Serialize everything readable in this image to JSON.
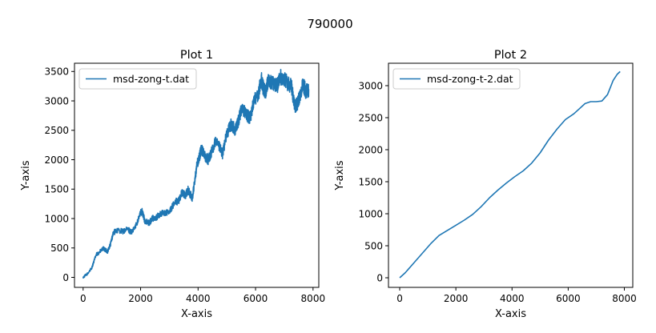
{
  "figure": {
    "suptitle": "790000"
  },
  "colors": {
    "line": "#1f77b4",
    "axes": "#000000",
    "legend_border": "#cccccc"
  },
  "chart_data": [
    {
      "type": "line",
      "title": "Plot 1",
      "xlabel": "X-axis",
      "ylabel": "Y-axis",
      "xlim": [
        -300,
        8200
      ],
      "ylim": [
        -170,
        3640
      ],
      "xticks": [
        0,
        2000,
        4000,
        6000,
        8000
      ],
      "yticks": [
        0,
        500,
        1000,
        1500,
        2000,
        2500,
        3000,
        3500
      ],
      "grid": false,
      "legend": "upper-left",
      "series": [
        {
          "name": "msd-zong-t.dat",
          "noisy": true,
          "x": [
            0,
            150,
            300,
            450,
            550,
            700,
            850,
            950,
            1050,
            1200,
            1400,
            1550,
            1700,
            1850,
            2000,
            2050,
            2150,
            2300,
            2400,
            2550,
            2700,
            2850,
            3000,
            3200,
            3300,
            3450,
            3550,
            3650,
            3800,
            3900,
            3950,
            4050,
            4100,
            4150,
            4250,
            4350,
            4450,
            4600,
            4750,
            4850,
            5000,
            5150,
            5300,
            5400,
            5500,
            5650,
            5800,
            5950,
            6100,
            6200,
            6250,
            6350,
            6450,
            6600,
            6750,
            6850,
            6950,
            7100,
            7250,
            7350,
            7450,
            7550,
            7650,
            7750,
            7850
          ],
          "y": [
            0,
            60,
            160,
            380,
            420,
            490,
            440,
            560,
            760,
            800,
            780,
            820,
            760,
            900,
            1100,
            1120,
            960,
            920,
            1000,
            1020,
            1080,
            1100,
            1100,
            1300,
            1280,
            1450,
            1380,
            1480,
            1350,
            1700,
            1900,
            2050,
            2180,
            2150,
            2050,
            2000,
            2100,
            2300,
            2200,
            2100,
            2450,
            2600,
            2500,
            2650,
            2850,
            2800,
            2700,
            3000,
            3100,
            3400,
            3250,
            3150,
            3350,
            3300,
            3250,
            3400,
            3400,
            3300,
            3250,
            2900,
            2950,
            3100,
            3300,
            3150,
            3200
          ]
        }
      ]
    },
    {
      "type": "line",
      "title": "Plot 2",
      "xlabel": "X-axis",
      "ylabel": "Y-axis",
      "xlim": [
        -400,
        8300
      ],
      "ylim": [
        -150,
        3350
      ],
      "xticks": [
        0,
        2000,
        4000,
        6000,
        8000
      ],
      "yticks": [
        0,
        500,
        1000,
        1500,
        2000,
        2500,
        3000
      ],
      "grid": false,
      "legend": "upper-left",
      "series": [
        {
          "name": "msd-zong-t-2.dat",
          "noisy": false,
          "x": [
            0,
            200,
            500,
            800,
            1100,
            1400,
            1700,
            2000,
            2300,
            2600,
            2900,
            3200,
            3500,
            3800,
            4100,
            4400,
            4700,
            5000,
            5300,
            5600,
            5900,
            6200,
            6400,
            6600,
            6800,
            7000,
            7200,
            7400,
            7600,
            7750,
            7850
          ],
          "y": [
            0,
            80,
            230,
            380,
            530,
            660,
            740,
            820,
            900,
            990,
            1110,
            1250,
            1370,
            1480,
            1580,
            1670,
            1790,
            1950,
            2150,
            2320,
            2470,
            2560,
            2640,
            2720,
            2750,
            2750,
            2760,
            2860,
            3080,
            3180,
            3220
          ]
        }
      ]
    }
  ]
}
